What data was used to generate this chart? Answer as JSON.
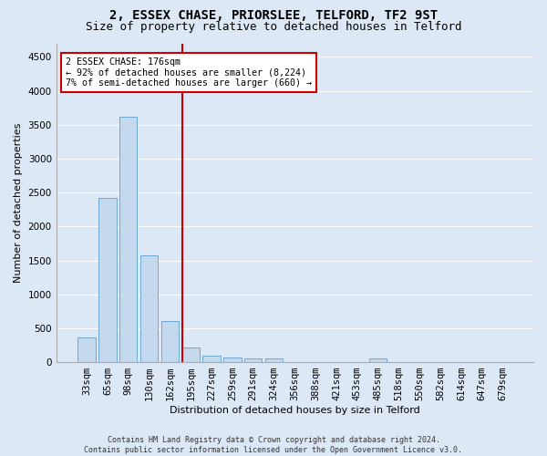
{
  "title1": "2, ESSEX CHASE, PRIORSLEE, TELFORD, TF2 9ST",
  "title2": "Size of property relative to detached houses in Telford",
  "xlabel": "Distribution of detached houses by size in Telford",
  "ylabel": "Number of detached properties",
  "categories": [
    "33sqm",
    "65sqm",
    "98sqm",
    "130sqm",
    "162sqm",
    "195sqm",
    "227sqm",
    "259sqm",
    "291sqm",
    "324sqm",
    "356sqm",
    "388sqm",
    "421sqm",
    "453sqm",
    "485sqm",
    "518sqm",
    "550sqm",
    "582sqm",
    "614sqm",
    "647sqm",
    "679sqm"
  ],
  "values": [
    370,
    2420,
    3620,
    1580,
    600,
    220,
    100,
    65,
    55,
    55,
    0,
    0,
    0,
    0,
    55,
    0,
    0,
    0,
    0,
    0,
    0
  ],
  "bar_color": "#c5d9ee",
  "bar_edge_color": "#6aaad4",
  "vline_color": "#cc0000",
  "annotation_text": "2 ESSEX CHASE: 176sqm\n← 92% of detached houses are smaller (8,224)\n7% of semi-detached houses are larger (660) →",
  "annotation_box_color": "white",
  "annotation_box_edge_color": "#cc0000",
  "ylim": [
    0,
    4700
  ],
  "yticks": [
    0,
    500,
    1000,
    1500,
    2000,
    2500,
    3000,
    3500,
    4000,
    4500
  ],
  "title1_fontsize": 10,
  "title2_fontsize": 9,
  "axis_label_fontsize": 8,
  "tick_fontsize": 7.5,
  "footer_text": "Contains HM Land Registry data © Crown copyright and database right 2024.\nContains public sector information licensed under the Open Government Licence v3.0.",
  "bg_color": "#dce8f5",
  "grid_color": "#ffffff",
  "vline_xindex": 4.58
}
